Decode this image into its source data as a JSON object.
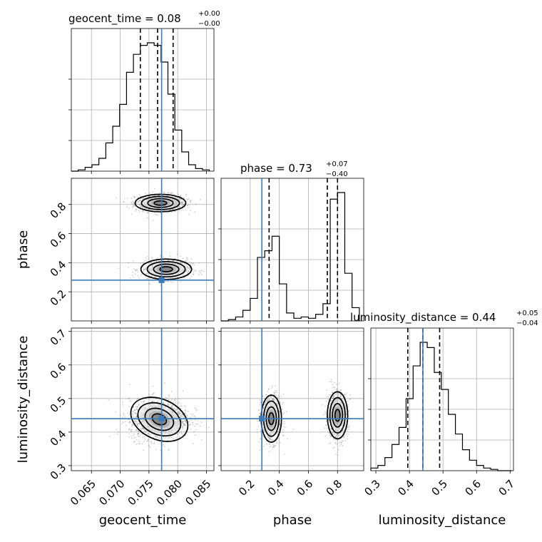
{
  "chart_data": {
    "type": "corner",
    "parameters": [
      "geocent_time",
      "phase",
      "luminosity_distance"
    ],
    "truths": {
      "geocent_time": 0.0772,
      "phase": 0.28,
      "luminosity_distance": 0.44
    },
    "truth_color": "#3d7ab8",
    "titles": [
      {
        "param": "geocent_time",
        "text": "geocent_time = 0.08",
        "plus": "+0.00",
        "minus": "−0.00"
      },
      {
        "param": "phase",
        "text": "phase = 0.73",
        "plus": "+0.07",
        "minus": "−0.40"
      },
      {
        "param": "luminosity_distance",
        "text": "luminosity_distance = 0.44",
        "plus": "+0.05",
        "minus": "−0.04"
      }
    ],
    "axes": {
      "geocent_time": {
        "range": [
          0.0615,
          0.0863
        ],
        "ticks": [
          0.065,
          0.07,
          0.075,
          0.08,
          0.085
        ],
        "ticklabels": [
          "0.065",
          "0.070",
          "0.075",
          "0.080",
          "0.085"
        ],
        "label": "geocent_time"
      },
      "phase": {
        "range": [
          0.0,
          0.98
        ],
        "ticks": [
          0.2,
          0.4,
          0.6,
          0.8
        ],
        "ticklabels": [
          "0.2",
          "0.4",
          "0.6",
          "0.8"
        ],
        "label": "phase"
      },
      "luminosity_distance": {
        "range": [
          0.285,
          0.71
        ],
        "ticks": [
          0.3,
          0.4,
          0.5,
          0.6,
          0.7
        ],
        "ticklabels": [
          "0.3",
          "0.4",
          "0.5",
          "0.6",
          "0.7"
        ],
        "label": "luminosity_distance"
      }
    },
    "histograms": {
      "geocent_time": {
        "edges": [
          0.0615,
          0.0627,
          0.0639,
          0.0651,
          0.0663,
          0.0675,
          0.0687,
          0.0699,
          0.0711,
          0.0723,
          0.0735,
          0.0747,
          0.0759,
          0.0771,
          0.0783,
          0.0795,
          0.0807,
          0.0819,
          0.0831,
          0.0843,
          0.0855
        ],
        "counts": [
          0,
          1,
          3,
          5,
          10,
          22,
          35,
          52,
          77,
          91,
          98,
          100,
          98,
          85,
          60,
          32,
          15,
          5,
          2,
          1
        ],
        "quantiles": [
          0.0735,
          0.0765,
          0.0792
        ]
      },
      "phase": {
        "edges": [
          0.0,
          0.05,
          0.1,
          0.15,
          0.2,
          0.25,
          0.3,
          0.35,
          0.4,
          0.45,
          0.5,
          0.55,
          0.6,
          0.65,
          0.7,
          0.75,
          0.8,
          0.85,
          0.9,
          0.95
        ],
        "counts": [
          0,
          1,
          3,
          8,
          17,
          48,
          53,
          64,
          28,
          6,
          2,
          3,
          2,
          5,
          13,
          92,
          97,
          36,
          10
        ],
        "quantiles": [
          0.33,
          0.73,
          0.8
        ]
      },
      "luminosity_distance": {
        "edges": [
          0.285,
          0.306,
          0.327,
          0.348,
          0.369,
          0.39,
          0.411,
          0.432,
          0.453,
          0.474,
          0.495,
          0.516,
          0.537,
          0.558,
          0.579,
          0.6,
          0.621,
          0.642,
          0.663,
          0.684,
          0.705
        ],
        "counts": [
          2,
          4,
          10,
          20,
          33,
          55,
          80,
          98,
          94,
          75,
          62,
          43,
          28,
          16,
          8,
          4,
          2,
          1,
          0,
          0
        ],
        "quantiles": [
          0.395,
          0.44,
          0.49
        ]
      }
    },
    "contours_2d": [
      {
        "x": "geocent_time",
        "y": "phase",
        "centers": [
          [
            0.077,
            0.81
          ],
          [
            0.078,
            0.36
          ]
        ],
        "levels": "0.5, 1, 1.5, 2 sigma"
      },
      {
        "x": "geocent_time",
        "y": "luminosity_distance",
        "centers": [
          [
            0.077,
            0.425
          ]
        ],
        "levels": "0.5, 1, 1.5, 2 sigma"
      },
      {
        "x": "phase",
        "y": "luminosity_distance",
        "centers": [
          [
            0.35,
            0.44
          ],
          [
            0.8,
            0.45
          ]
        ],
        "levels": "0.5, 1, 1.5, 2 sigma"
      }
    ]
  }
}
